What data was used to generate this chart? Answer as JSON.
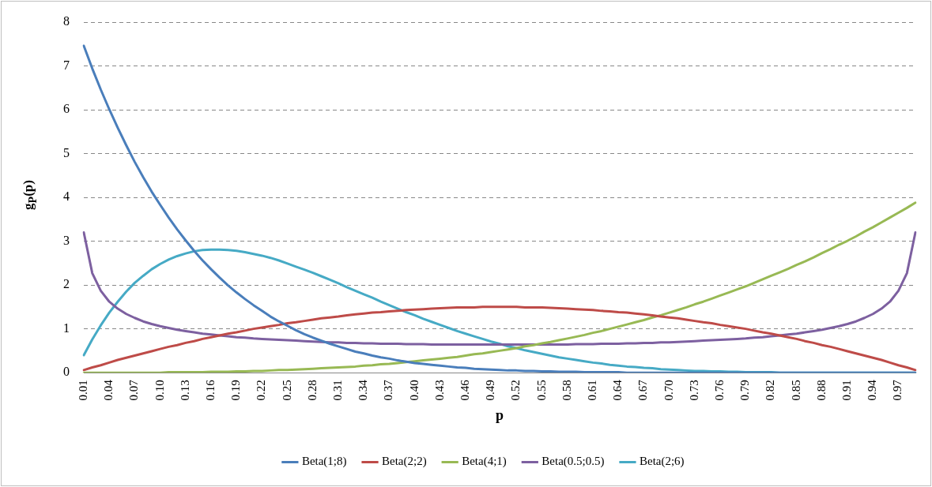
{
  "chart_data": {
    "type": "line",
    "xlabel": "p",
    "ylabel": "g$_{P}$(p)",
    "categories": [
      "0.01",
      null,
      null,
      "0.04",
      null,
      null,
      "0.07",
      null,
      null,
      "0.10",
      null,
      null,
      "0.13",
      null,
      null,
      "0.16",
      null,
      null,
      "0.19",
      null,
      null,
      "0.22",
      null,
      null,
      "0.25",
      null,
      null,
      "0.28",
      null,
      null,
      "0.31",
      null,
      null,
      "0.34",
      null,
      null,
      "0.37",
      null,
      null,
      "0.40",
      null,
      null,
      "0.43",
      null,
      null,
      "0.46",
      null,
      null,
      "0.49",
      null,
      null,
      "0.52",
      null,
      null,
      "0.55",
      null,
      null,
      "0.58",
      null,
      null,
      "0.61",
      null,
      null,
      "0.64",
      null,
      null,
      "0.67",
      null,
      null,
      "0.70",
      null,
      null,
      "0.73",
      null,
      null,
      "0.76",
      null,
      null,
      "0.79",
      null,
      null,
      "0.82",
      null,
      null,
      "0.85",
      null,
      null,
      "0.88",
      null,
      null,
      "0.91",
      null,
      null,
      "0.94",
      null,
      null,
      "0.97",
      null,
      null
    ],
    "series": [
      {
        "name": "Beta(1;8)",
        "color": "#4a7ebb",
        "values": [
          7.46,
          6.94,
          6.46,
          6.01,
          5.59,
          5.19,
          4.81,
          4.46,
          4.13,
          3.83,
          3.54,
          3.27,
          3.02,
          2.78,
          2.56,
          2.36,
          2.17,
          1.99,
          1.83,
          1.68,
          1.54,
          1.41,
          1.28,
          1.17,
          1.07,
          0.97,
          0.88,
          0.8,
          0.73,
          0.66,
          0.6,
          0.54,
          0.48,
          0.44,
          0.39,
          0.35,
          0.32,
          0.28,
          0.25,
          0.22,
          0.2,
          0.18,
          0.16,
          0.14,
          0.12,
          0.11,
          0.09,
          0.08,
          0.07,
          0.06,
          0.05,
          0.05,
          0.04,
          0.04,
          0.03,
          0.03,
          0.02,
          0.02,
          0.02,
          0.01,
          0.01,
          0.01,
          0.01,
          0.01,
          0,
          0,
          0,
          0,
          0,
          0,
          0,
          0,
          0,
          0,
          0,
          0,
          0,
          0,
          0,
          0,
          0,
          0,
          0,
          0,
          0,
          0,
          0,
          0,
          0,
          0,
          0,
          0,
          0,
          0,
          0,
          0,
          0,
          0,
          0
        ]
      },
      {
        "name": "Beta(2;2)",
        "color": "#be4b48",
        "values": [
          0.06,
          0.12,
          0.17,
          0.23,
          0.29,
          0.34,
          0.39,
          0.44,
          0.49,
          0.54,
          0.59,
          0.63,
          0.68,
          0.72,
          0.77,
          0.81,
          0.85,
          0.89,
          0.92,
          0.96,
          1.0,
          1.03,
          1.06,
          1.09,
          1.13,
          1.15,
          1.18,
          1.21,
          1.24,
          1.26,
          1.28,
          1.31,
          1.33,
          1.35,
          1.37,
          1.38,
          1.4,
          1.41,
          1.43,
          1.44,
          1.45,
          1.46,
          1.47,
          1.48,
          1.49,
          1.49,
          1.49,
          1.5,
          1.5,
          1.5,
          1.5,
          1.5,
          1.49,
          1.49,
          1.49,
          1.48,
          1.47,
          1.46,
          1.45,
          1.44,
          1.43,
          1.41,
          1.4,
          1.38,
          1.37,
          1.35,
          1.33,
          1.31,
          1.28,
          1.26,
          1.24,
          1.21,
          1.18,
          1.15,
          1.13,
          1.09,
          1.06,
          1.03,
          1.0,
          0.96,
          0.92,
          0.89,
          0.85,
          0.81,
          0.77,
          0.72,
          0.68,
          0.63,
          0.59,
          0.54,
          0.49,
          0.44,
          0.39,
          0.34,
          0.29,
          0.23,
          0.17,
          0.12,
          0.06
        ]
      },
      {
        "name": "Beta(4;1)",
        "color": "#98b954",
        "values": [
          0,
          0,
          0,
          0,
          0,
          0,
          0,
          0,
          0,
          0,
          0.01,
          0.01,
          0.01,
          0.01,
          0.01,
          0.02,
          0.02,
          0.02,
          0.03,
          0.03,
          0.04,
          0.04,
          0.05,
          0.06,
          0.06,
          0.07,
          0.08,
          0.09,
          0.1,
          0.11,
          0.12,
          0.13,
          0.14,
          0.16,
          0.17,
          0.19,
          0.2,
          0.22,
          0.24,
          0.26,
          0.28,
          0.3,
          0.32,
          0.34,
          0.36,
          0.39,
          0.42,
          0.44,
          0.47,
          0.5,
          0.53,
          0.56,
          0.6,
          0.63,
          0.67,
          0.7,
          0.74,
          0.78,
          0.82,
          0.86,
          0.91,
          0.95,
          1.0,
          1.05,
          1.1,
          1.15,
          1.2,
          1.26,
          1.31,
          1.37,
          1.43,
          1.49,
          1.56,
          1.62,
          1.69,
          1.76,
          1.83,
          1.9,
          1.97,
          2.05,
          2.13,
          2.21,
          2.29,
          2.37,
          2.46,
          2.54,
          2.63,
          2.73,
          2.82,
          2.92,
          3.01,
          3.11,
          3.22,
          3.32,
          3.43,
          3.54,
          3.65,
          3.76,
          3.88
        ]
      },
      {
        "name": "Beta(0.5;0.5)",
        "color": "#7d60a0",
        "values": [
          3.2,
          2.27,
          1.87,
          1.62,
          1.46,
          1.34,
          1.25,
          1.17,
          1.11,
          1.06,
          1.02,
          0.98,
          0.95,
          0.92,
          0.89,
          0.87,
          0.85,
          0.83,
          0.81,
          0.8,
          0.78,
          0.77,
          0.76,
          0.75,
          0.74,
          0.73,
          0.72,
          0.71,
          0.7,
          0.69,
          0.69,
          0.68,
          0.68,
          0.67,
          0.67,
          0.66,
          0.66,
          0.66,
          0.65,
          0.65,
          0.65,
          0.64,
          0.64,
          0.64,
          0.64,
          0.64,
          0.64,
          0.64,
          0.64,
          0.64,
          0.64,
          0.64,
          0.64,
          0.64,
          0.64,
          0.64,
          0.64,
          0.64,
          0.65,
          0.65,
          0.65,
          0.66,
          0.66,
          0.66,
          0.67,
          0.67,
          0.68,
          0.68,
          0.69,
          0.69,
          0.7,
          0.71,
          0.72,
          0.73,
          0.74,
          0.75,
          0.76,
          0.77,
          0.78,
          0.8,
          0.81,
          0.83,
          0.85,
          0.87,
          0.89,
          0.92,
          0.95,
          0.98,
          1.02,
          1.06,
          1.11,
          1.17,
          1.25,
          1.34,
          1.46,
          1.62,
          1.87,
          2.27,
          3.2
        ]
      },
      {
        "name": "Beta(2;6)",
        "color": "#46aac5",
        "values": [
          0.4,
          0.76,
          1.08,
          1.37,
          1.62,
          1.85,
          2.05,
          2.21,
          2.36,
          2.48,
          2.58,
          2.66,
          2.72,
          2.77,
          2.8,
          2.81,
          2.81,
          2.8,
          2.78,
          2.75,
          2.71,
          2.67,
          2.62,
          2.56,
          2.49,
          2.42,
          2.35,
          2.28,
          2.2,
          2.12,
          2.04,
          1.95,
          1.87,
          1.79,
          1.71,
          1.62,
          1.54,
          1.46,
          1.38,
          1.31,
          1.23,
          1.16,
          1.09,
          1.02,
          0.95,
          0.89,
          0.83,
          0.77,
          0.71,
          0.66,
          0.6,
          0.56,
          0.51,
          0.47,
          0.43,
          0.39,
          0.35,
          0.32,
          0.29,
          0.26,
          0.23,
          0.21,
          0.18,
          0.16,
          0.14,
          0.13,
          0.11,
          0.1,
          0.08,
          0.07,
          0.06,
          0.05,
          0.04,
          0.04,
          0.03,
          0.03,
          0.02,
          0.02,
          0.01,
          0.01,
          0.01,
          0.01,
          0,
          0,
          0,
          0,
          0,
          0,
          0,
          0,
          0,
          0,
          0,
          0,
          0,
          0,
          0,
          0,
          0
        ]
      }
    ],
    "ylim": [
      0,
      8
    ],
    "yticks": [
      0,
      1,
      2,
      3,
      4,
      5,
      6,
      7,
      8
    ],
    "grid": "y",
    "legend": "bottom",
    "marker": "none",
    "line_style": "solid"
  }
}
